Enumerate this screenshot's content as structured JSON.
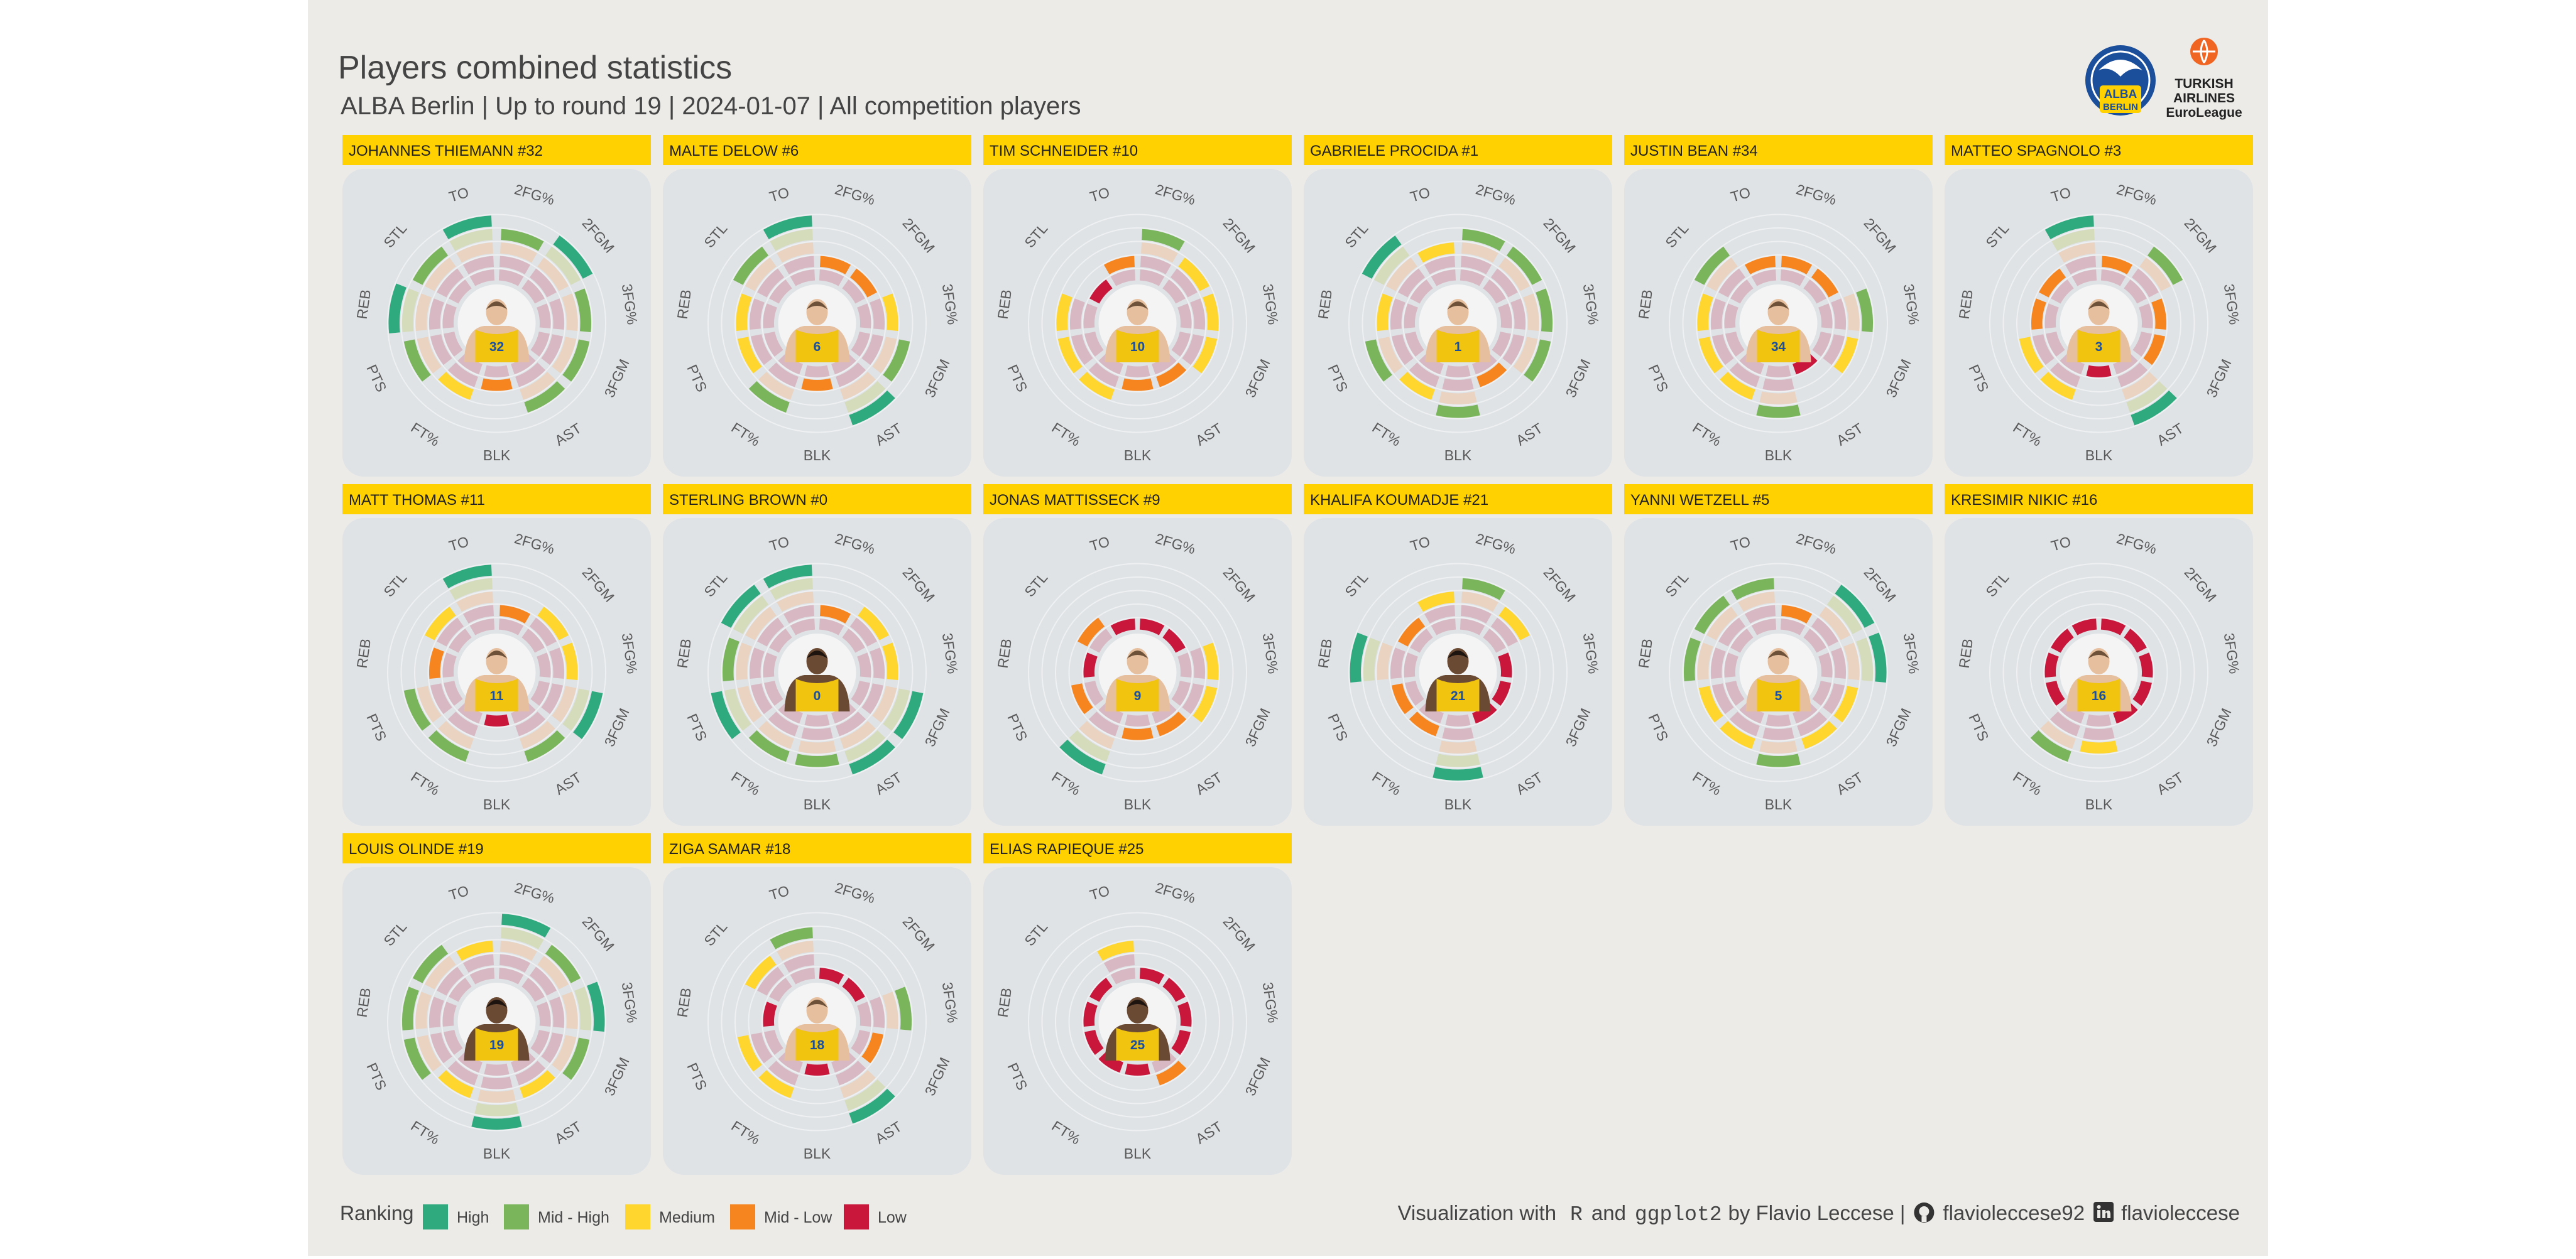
{
  "header": {
    "title": "Players combined statistics",
    "subtitle": "ALBA Berlin | Up to round 19 | 2024-01-07 | All competition players",
    "logo_alba_text": [
      "ALBA",
      "BERLIN"
    ],
    "logo_euroleague_text": [
      "TURKISH",
      "AIRLINES",
      "EuroLeague"
    ]
  },
  "colors": {
    "page_bg": "#ffffff",
    "panel_bg": "#ecebe8",
    "card_bg": "#dfe3e6",
    "header_bar": "#ffd100",
    "High": "#2eaa7e",
    "Mid - High": "#7ab55c",
    "Medium": "#ffd62e",
    "Mid - Low": "#f7851f",
    "Low": "#c9173c",
    "ring_pale": "#d8b9c3",
    "ring_cream": "#ead3c0",
    "ring_green_pale": "#d5dcbb",
    "title_text": "#444444",
    "jersey": "#f1c40f"
  },
  "legend": {
    "title": "Ranking",
    "items": [
      "High",
      "Mid - High",
      "Medium",
      "Mid - Low",
      "Low"
    ]
  },
  "footer": {
    "prefix": "Visualization with",
    "code1": "R",
    "and": "and",
    "code2": "ggplot2",
    "by": "by Flavio Leccese |",
    "github": "flavioleccese92",
    "linkedin": "flavioleccese",
    "github_icon": "github-icon",
    "linkedin_icon": "linkedin-icon"
  },
  "chart_data": {
    "type": "radial-bar",
    "levels_legend": [
      "Low",
      "Mid - Low",
      "Medium",
      "Mid - High",
      "High"
    ],
    "stats": [
      "2FG%",
      "2FGM",
      "3FG%",
      "3FGM",
      "AST",
      "BLK",
      "FT%",
      "PTS",
      "REB",
      "STL",
      "TO"
    ],
    "players": [
      {
        "name": "JOHANNES THIEMANN #32",
        "number": "32",
        "skin": "light",
        "levels": [
          4,
          5,
          4,
          4,
          4,
          2,
          3,
          4,
          5,
          4,
          5
        ]
      },
      {
        "name": "MALTE DELOW #6",
        "number": "6",
        "skin": "light",
        "levels": [
          2,
          2,
          3,
          4,
          5,
          2,
          4,
          3,
          3,
          4,
          5
        ]
      },
      {
        "name": "TIM SCHNEIDER #10",
        "number": "10",
        "skin": "light",
        "levels": [
          4,
          3,
          3,
          3,
          2,
          2,
          3,
          3,
          3,
          1,
          2
        ]
      },
      {
        "name": "GABRIELE PROCIDA #1",
        "number": "1",
        "skin": "light",
        "levels": [
          4,
          4,
          4,
          4,
          2,
          4,
          3,
          4,
          3,
          5,
          3
        ]
      },
      {
        "name": "JUSTIN BEAN #34",
        "number": "34",
        "skin": "light",
        "levels": [
          2,
          2,
          4,
          3,
          1,
          4,
          3,
          3,
          3,
          4,
          2
        ]
      },
      {
        "name": "MATTEO SPAGNOLO #3",
        "number": "3",
        "skin": "light",
        "levels": [
          2,
          4,
          2,
          2,
          5,
          1,
          3,
          3,
          2,
          2,
          5
        ]
      },
      {
        "name": "MATT THOMAS #11",
        "number": "11",
        "skin": "light",
        "levels": [
          2,
          3,
          3,
          5,
          4,
          1,
          4,
          4,
          2,
          3,
          5
        ]
      },
      {
        "name": "STERLING BROWN #0",
        "number": "0",
        "skin": "dark",
        "levels": [
          2,
          3,
          3,
          5,
          5,
          4,
          4,
          5,
          4,
          5,
          5
        ]
      },
      {
        "name": "JONAS MATTISSECK #9",
        "number": "9",
        "skin": "light",
        "levels": [
          1,
          1,
          3,
          3,
          2,
          2,
          5,
          2,
          1,
          2,
          1
        ]
      },
      {
        "name": "KHALIFA KOUMADJE #21",
        "number": "21",
        "skin": "dark",
        "levels": [
          4,
          3,
          1,
          1,
          1,
          5,
          2,
          2,
          5,
          2,
          3
        ]
      },
      {
        "name": "YANNI WETZELL #5",
        "number": "5",
        "skin": "light",
        "levels": [
          2,
          5,
          5,
          3,
          3,
          4,
          3,
          3,
          4,
          4,
          4
        ]
      },
      {
        "name": "KRESIMIR NIKIC #16",
        "number": "16",
        "skin": "light",
        "levels": [
          1,
          1,
          1,
          1,
          1,
          3,
          4,
          1,
          1,
          1,
          1
        ]
      },
      {
        "name": "LOUIS OLINDE #19",
        "number": "19",
        "skin": "dark",
        "levels": [
          5,
          4,
          5,
          4,
          3,
          5,
          3,
          4,
          4,
          4,
          3
        ]
      },
      {
        "name": "ZIGA SAMAR #18",
        "number": "18",
        "skin": "light",
        "levels": [
          1,
          1,
          4,
          2,
          5,
          1,
          3,
          3,
          1,
          3,
          4
        ]
      },
      {
        "name": "ELIAS RAPIEQUE #25",
        "number": "25",
        "skin": "dark",
        "levels": [
          1,
          1,
          1,
          1,
          2,
          1,
          1,
          1,
          1,
          1,
          3
        ]
      }
    ]
  }
}
